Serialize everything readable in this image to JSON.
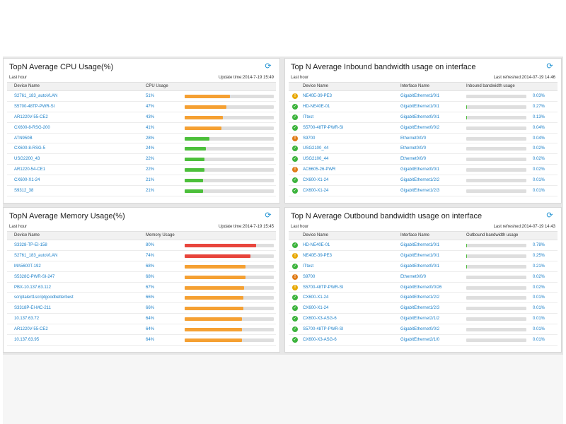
{
  "colors": {
    "green": "#4cbf3a",
    "orange": "#f5a032",
    "red": "#e8453c",
    "bar_bg": "#dedede",
    "link": "#1a7fc8"
  },
  "cpu": {
    "title": "TopN Average CPU Usage(%)",
    "period": "Last hour",
    "update": "Update time:2014-7-19 15:49",
    "col_name": "Device Name",
    "col_usage": "CPU Usage",
    "rows": [
      {
        "name": "S2761_183_autoVLAN",
        "value": "51%",
        "pct": 51,
        "color": "orange"
      },
      {
        "name": "S5700-48TP-PWR-SI",
        "value": "47%",
        "pct": 47,
        "color": "orange"
      },
      {
        "name": "AR1220V-55-CE2",
        "value": "43%",
        "pct": 43,
        "color": "orange"
      },
      {
        "name": "CX600-8-RSG-200",
        "value": "41%",
        "pct": 41,
        "color": "orange"
      },
      {
        "name": "ATN950B",
        "value": "28%",
        "pct": 28,
        "color": "green"
      },
      {
        "name": "CX600-8-RSG-5",
        "value": "24%",
        "pct": 24,
        "color": "green"
      },
      {
        "name": "USG2200_43",
        "value": "22%",
        "pct": 22,
        "color": "green"
      },
      {
        "name": "AR1220-54-CE1",
        "value": "22%",
        "pct": 22,
        "color": "green"
      },
      {
        "name": "CX600-X1-24",
        "value": "21%",
        "pct": 21,
        "color": "green"
      },
      {
        "name": "S9312_38",
        "value": "21%",
        "pct": 21,
        "color": "green"
      }
    ]
  },
  "inbound": {
    "title": "Top N Average Inbound bandwidth usage on interface",
    "period": "Last hour",
    "update": "Last refreshed:2014-07-19 14:46",
    "col_name": "Device Name",
    "col_iface": "Interface Name",
    "col_usage": "Inbound bandwidth usage",
    "rows": [
      {
        "status": "warn",
        "name": "NE40E-39-PE3",
        "iface": "GigabitEthernet1/0/1",
        "value": "0.03%",
        "pct": 0.03
      },
      {
        "status": "ok",
        "name": "HD-NE40E-01",
        "iface": "GigabitEthernet1/0/1",
        "value": "0.27%",
        "pct": 0.27
      },
      {
        "status": "ok",
        "name": "ITtest",
        "iface": "GigabitEthernet0/0/1",
        "value": "0.13%",
        "pct": 0.13
      },
      {
        "status": "ok",
        "name": "S5700-48TP-PWR-SI",
        "iface": "GigabitEthernet0/0/2",
        "value": "0.04%",
        "pct": 0.04
      },
      {
        "status": "minor",
        "name": "S9700",
        "iface": "Ethernet0/0/0",
        "value": "0.04%",
        "pct": 0.04
      },
      {
        "status": "ok",
        "name": "USG2100_44",
        "iface": "Ethernet0/0/0",
        "value": "0.02%",
        "pct": 0.02
      },
      {
        "status": "ok",
        "name": "USG2100_44",
        "iface": "Ethernet0/0/0",
        "value": "0.02%",
        "pct": 0.02
      },
      {
        "status": "minor",
        "name": "AC6605-26-PWR",
        "iface": "GigabitEthernet0/0/1",
        "value": "0.02%",
        "pct": 0.02
      },
      {
        "status": "ok",
        "name": "CX600-X1-24",
        "iface": "GigabitEthernet1/2/2",
        "value": "0.01%",
        "pct": 0.01
      },
      {
        "status": "ok",
        "name": "CX600-X1-24",
        "iface": "GigabitEthernet1/2/3",
        "value": "0.01%",
        "pct": 0.01
      }
    ]
  },
  "memory": {
    "title": "TopN Average Memory Usage(%)",
    "period": "Last hour",
    "update": "Update time:2014-7-19 15:45",
    "col_name": "Device Name",
    "col_usage": "Memory Usage",
    "rows": [
      {
        "name": "S3328-TP-EI-158",
        "value": "80%",
        "pct": 80,
        "color": "red"
      },
      {
        "name": "S2761_183_autoVLAN",
        "value": "74%",
        "pct": 74,
        "color": "red"
      },
      {
        "name": "MA5600T-192",
        "value": "68%",
        "pct": 68,
        "color": "orange"
      },
      {
        "name": "S5328C-PWR-SI-247",
        "value": "68%",
        "pct": 68,
        "color": "orange"
      },
      {
        "name": "PBX-10.137.63.112",
        "value": "67%",
        "pct": 67,
        "color": "orange"
      },
      {
        "name": "scriptalert1scriptgoodbetterbest",
        "value": "66%",
        "pct": 66,
        "color": "orange"
      },
      {
        "name": "S3318P-EI-MC-211",
        "value": "66%",
        "pct": 66,
        "color": "orange"
      },
      {
        "name": "10.137.63.72",
        "value": "64%",
        "pct": 64,
        "color": "orange"
      },
      {
        "name": "AR1220V-55-CE2",
        "value": "64%",
        "pct": 64,
        "color": "orange"
      },
      {
        "name": "10.137.63.95",
        "value": "64%",
        "pct": 64,
        "color": "orange"
      }
    ]
  },
  "outbound": {
    "title": "Top N Average Outbound bandwidth usage on interface",
    "period": "Last hour",
    "update": "Last refreshed:2014-07-19 14:43",
    "col_name": "Device Name",
    "col_iface": "Interface Name",
    "col_usage": "Outbound bandwidth usage",
    "rows": [
      {
        "status": "ok",
        "name": "HD-NE40E-01",
        "iface": "GigabitEthernet1/0/1",
        "value": "0.78%",
        "pct": 0.78
      },
      {
        "status": "warn",
        "name": "NE40E-39-PE3",
        "iface": "GigabitEthernet1/0/1",
        "value": "0.25%",
        "pct": 0.25
      },
      {
        "status": "ok",
        "name": "ITtest",
        "iface": "GigabitEthernet0/0/1",
        "value": "0.21%",
        "pct": 0.21
      },
      {
        "status": "minor",
        "name": "S9700",
        "iface": "Ethernet0/0/0",
        "value": "0.02%",
        "pct": 0.02
      },
      {
        "status": "warn",
        "name": "S5700-48TP-PWR-SI",
        "iface": "GigabitEthernet0/0/26",
        "value": "0.02%",
        "pct": 0.02
      },
      {
        "status": "ok",
        "name": "CX600-X1-24",
        "iface": "GigabitEthernet1/2/2",
        "value": "0.01%",
        "pct": 0.01
      },
      {
        "status": "ok",
        "name": "CX600-X1-24",
        "iface": "GigabitEthernet1/2/3",
        "value": "0.01%",
        "pct": 0.01
      },
      {
        "status": "ok",
        "name": "CX600-X3-ASG-6",
        "iface": "GigabitEthernet2/1/2",
        "value": "0.01%",
        "pct": 0.01
      },
      {
        "status": "ok",
        "name": "S5700-48TP-PWR-SI",
        "iface": "GigabitEthernet0/0/2",
        "value": "0.01%",
        "pct": 0.01
      },
      {
        "status": "ok",
        "name": "CX600-X3-ASG-6",
        "iface": "GigabitEthernet2/1/0",
        "value": "0.01%",
        "pct": 0.01
      }
    ]
  }
}
